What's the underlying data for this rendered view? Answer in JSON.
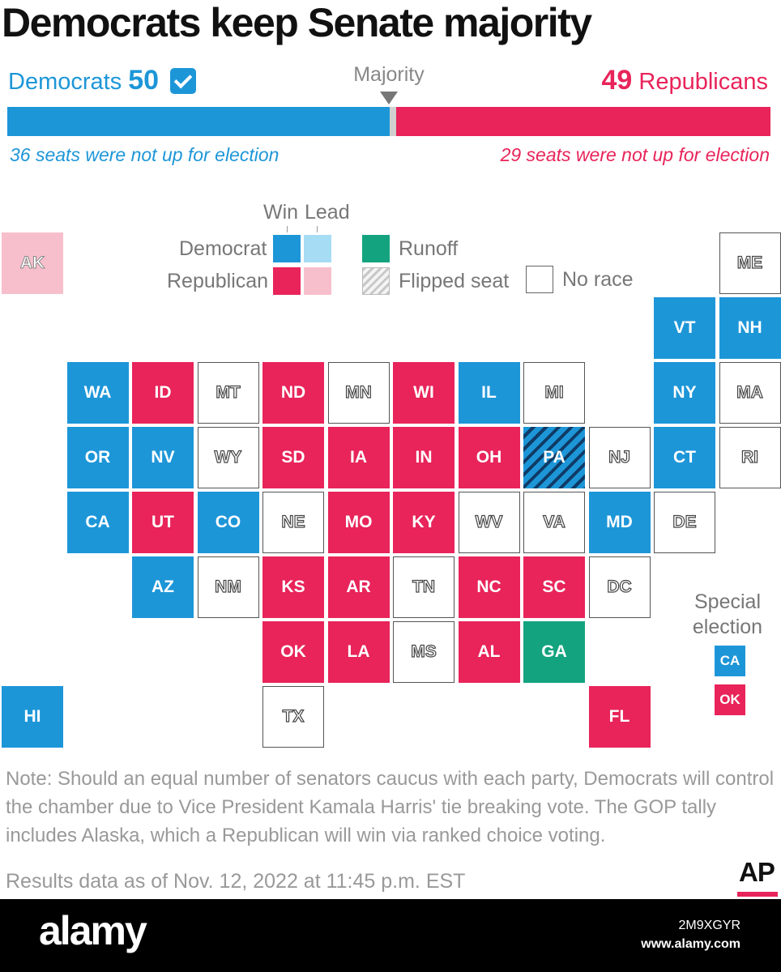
{
  "title": "Democrats keep Senate majority",
  "summary": {
    "dem_label": "Democrats",
    "dem_seats": "50",
    "majority_label": "Majority",
    "rep_seats": "49",
    "rep_label": "Republicans",
    "dem_not_up": "36 seats were not up for election",
    "rep_not_up": "29 seats were not up for election"
  },
  "legend": {
    "win": "Win",
    "lead": "Lead",
    "democrat": "Democrat",
    "republican": "Republican",
    "runoff": "Runoff",
    "flipped": "Flipped seat",
    "no_race": "No race"
  },
  "colors": {
    "dem": "#1d96d8",
    "dem_lead": "#a6dcf4",
    "rep": "#e8245a",
    "rep_lead": "#f7bfcc",
    "runoff": "#14a37f"
  },
  "states": [
    {
      "abbr": "AK",
      "status": "replead"
    },
    {
      "abbr": "ME",
      "status": "none"
    },
    {
      "abbr": "VT",
      "status": "dem"
    },
    {
      "abbr": "NH",
      "status": "dem"
    },
    {
      "abbr": "WA",
      "status": "dem"
    },
    {
      "abbr": "ID",
      "status": "rep"
    },
    {
      "abbr": "MT",
      "status": "none"
    },
    {
      "abbr": "ND",
      "status": "rep"
    },
    {
      "abbr": "MN",
      "status": "none"
    },
    {
      "abbr": "WI",
      "status": "rep"
    },
    {
      "abbr": "IL",
      "status": "dem"
    },
    {
      "abbr": "MI",
      "status": "none"
    },
    {
      "abbr": "NY",
      "status": "dem"
    },
    {
      "abbr": "MA",
      "status": "none"
    },
    {
      "abbr": "OR",
      "status": "dem"
    },
    {
      "abbr": "NV",
      "status": "dem"
    },
    {
      "abbr": "WY",
      "status": "none"
    },
    {
      "abbr": "SD",
      "status": "rep"
    },
    {
      "abbr": "IA",
      "status": "rep"
    },
    {
      "abbr": "IN",
      "status": "rep"
    },
    {
      "abbr": "OH",
      "status": "rep"
    },
    {
      "abbr": "PA",
      "status": "flip"
    },
    {
      "abbr": "NJ",
      "status": "none"
    },
    {
      "abbr": "CT",
      "status": "dem"
    },
    {
      "abbr": "RI",
      "status": "none"
    },
    {
      "abbr": "CA",
      "status": "dem"
    },
    {
      "abbr": "UT",
      "status": "rep"
    },
    {
      "abbr": "CO",
      "status": "dem"
    },
    {
      "abbr": "NE",
      "status": "none"
    },
    {
      "abbr": "MO",
      "status": "rep"
    },
    {
      "abbr": "KY",
      "status": "rep"
    },
    {
      "abbr": "WV",
      "status": "none"
    },
    {
      "abbr": "VA",
      "status": "none"
    },
    {
      "abbr": "MD",
      "status": "dem"
    },
    {
      "abbr": "DE",
      "status": "none"
    },
    {
      "abbr": "AZ",
      "status": "dem"
    },
    {
      "abbr": "NM",
      "status": "none"
    },
    {
      "abbr": "KS",
      "status": "rep"
    },
    {
      "abbr": "AR",
      "status": "rep"
    },
    {
      "abbr": "TN",
      "status": "none"
    },
    {
      "abbr": "NC",
      "status": "rep"
    },
    {
      "abbr": "SC",
      "status": "rep"
    },
    {
      "abbr": "DC",
      "status": "none"
    },
    {
      "abbr": "OK",
      "status": "rep"
    },
    {
      "abbr": "LA",
      "status": "rep"
    },
    {
      "abbr": "MS",
      "status": "none"
    },
    {
      "abbr": "AL",
      "status": "rep"
    },
    {
      "abbr": "GA",
      "status": "runoff"
    },
    {
      "abbr": "HI",
      "status": "dem"
    },
    {
      "abbr": "TX",
      "status": "none"
    },
    {
      "abbr": "FL",
      "status": "rep"
    }
  ],
  "special": {
    "title_line1": "Special",
    "title_line2": "election",
    "items": [
      {
        "abbr": "CA",
        "status": "dem"
      },
      {
        "abbr": "OK",
        "status": "rep"
      }
    ]
  },
  "note": "Note: Should an equal number of senators caucus with each party, Democrats will control the chamber due to Vice President Kamala Harris' tie breaking vote. The GOP tally includes Alaska, which a Republican will win via ranked choice voting.",
  "results": "Results data as of Nov. 12, 2022 at 11:45 p.m. EST",
  "ap_logo": "AP",
  "footer": {
    "logo": "alamy",
    "image_id": "2M9XGYR",
    "url": "www.alamy.com"
  }
}
